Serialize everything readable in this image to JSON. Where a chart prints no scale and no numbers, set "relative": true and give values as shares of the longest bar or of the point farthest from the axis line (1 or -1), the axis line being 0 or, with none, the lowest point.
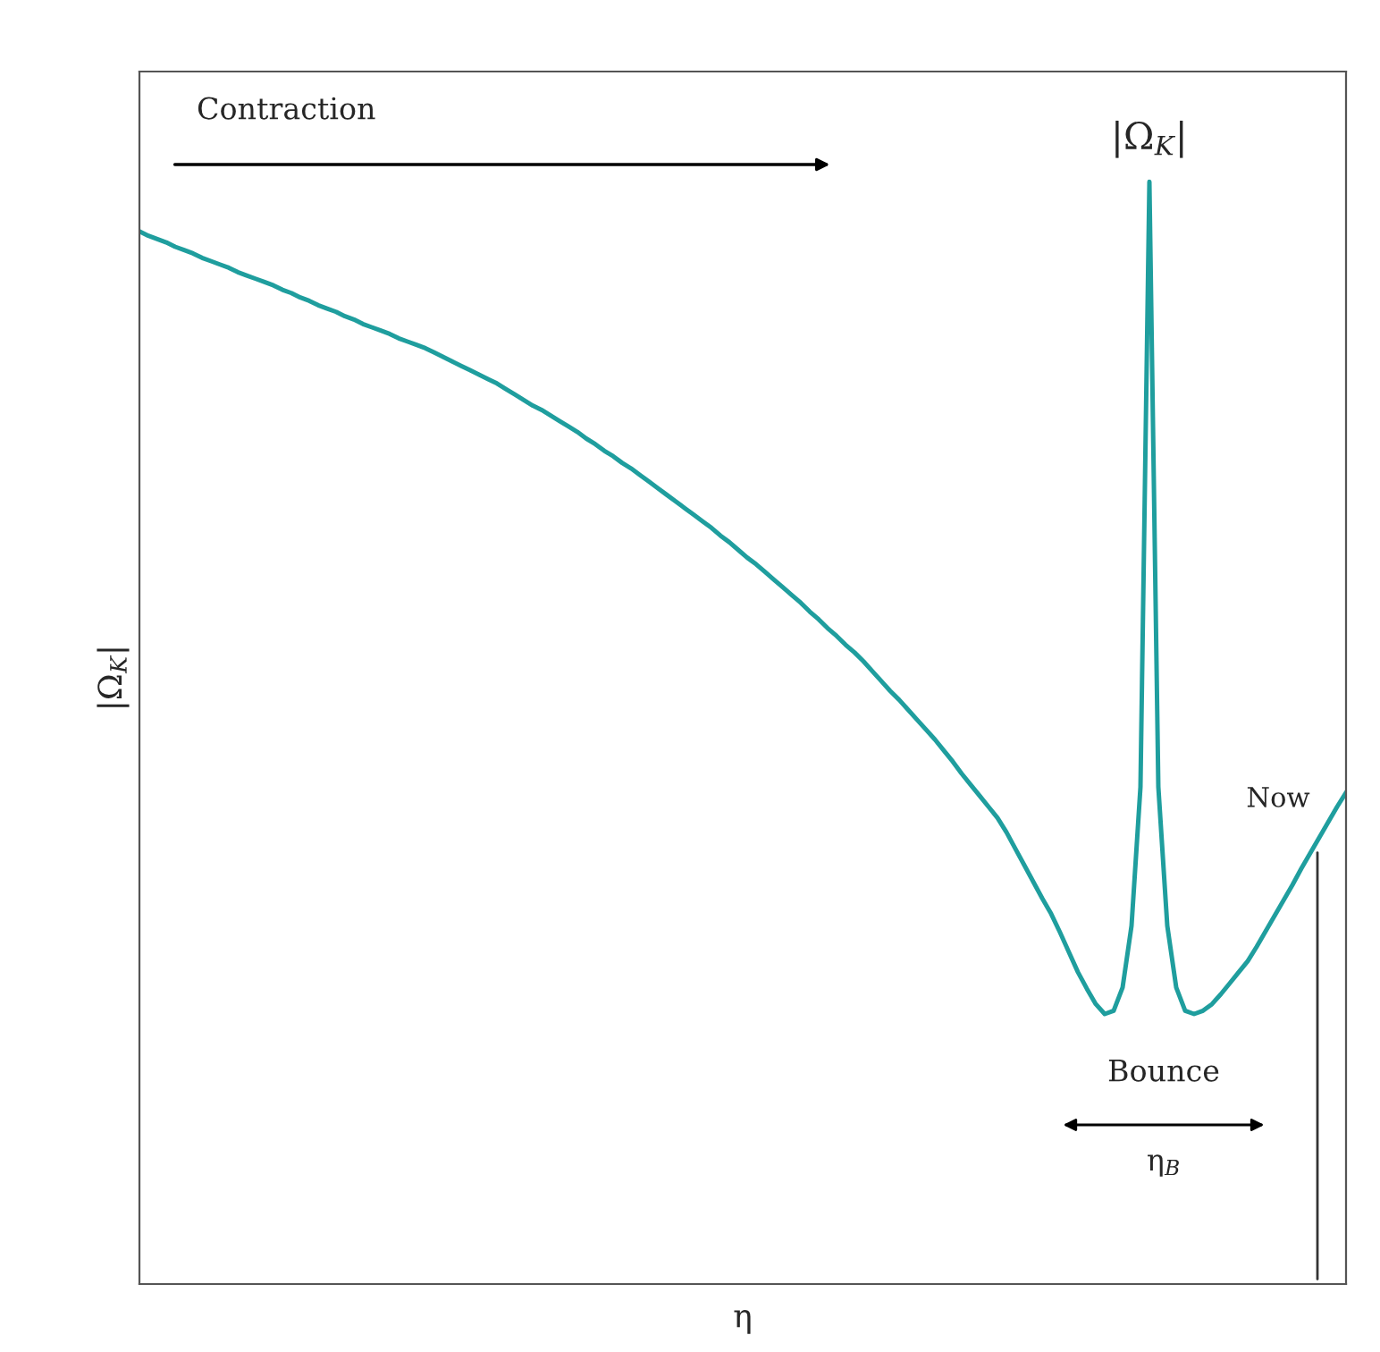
{
  "chart_data": {
    "type": "line",
    "relative": true,
    "xlabel": "η",
    "ylabel": "|Ω$_{K}$|",
    "categories": [
      null,
      null,
      null,
      null,
      null,
      null,
      null,
      null,
      null,
      null,
      null,
      null,
      null,
      null,
      null,
      null,
      null,
      null,
      null,
      null,
      null,
      null,
      null,
      null,
      null,
      null,
      null,
      null,
      null,
      null,
      null,
      null,
      null,
      null,
      null,
      null,
      null,
      null,
      null,
      null,
      null,
      null,
      null,
      null,
      null,
      null,
      null,
      null,
      null,
      null,
      null,
      null,
      null,
      null,
      null,
      null,
      null,
      null,
      null,
      null,
      null,
      null,
      null,
      null,
      null,
      null,
      null,
      null,
      null,
      null,
      null,
      null,
      null,
      null,
      null,
      null,
      null,
      null,
      null,
      null,
      null,
      null,
      null,
      null,
      null,
      null,
      null,
      null,
      null,
      null,
      null,
      null,
      null,
      null,
      null,
      null,
      null,
      null,
      null,
      null,
      null,
      null,
      null,
      null,
      null,
      null,
      null,
      null,
      null,
      null,
      null,
      null,
      null,
      null,
      null,
      null,
      null,
      null,
      null,
      null,
      null,
      null,
      null,
      null,
      null,
      null,
      null,
      null,
      null,
      null,
      null,
      null,
      null,
      null,
      null,
      null
    ],
    "series": [
      {
        "color": "#1f9e9e",
        "values": [
          0.955,
          0.951,
          0.948,
          0.945,
          0.941,
          0.938,
          0.935,
          0.931,
          0.928,
          0.925,
          0.922,
          0.918,
          0.915,
          0.912,
          0.909,
          0.906,
          0.902,
          0.899,
          0.895,
          0.892,
          0.888,
          0.885,
          0.882,
          0.878,
          0.875,
          0.871,
          0.868,
          0.865,
          0.862,
          0.858,
          0.855,
          0.852,
          0.849,
          0.845,
          0.841,
          0.837,
          0.833,
          0.829,
          0.825,
          0.821,
          0.817,
          0.812,
          0.807,
          0.802,
          0.797,
          0.793,
          0.788,
          0.783,
          0.778,
          0.773,
          0.767,
          0.762,
          0.756,
          0.751,
          0.745,
          0.74,
          0.734,
          0.728,
          0.722,
          0.716,
          0.71,
          0.704,
          0.698,
          0.692,
          0.686,
          0.679,
          0.673,
          0.666,
          0.659,
          0.653,
          0.646,
          0.639,
          0.632,
          0.625,
          0.618,
          0.61,
          0.603,
          0.595,
          0.588,
          0.58,
          0.573,
          0.565,
          0.556,
          0.547,
          0.538,
          0.53,
          0.521,
          0.512,
          0.503,
          0.494,
          0.484,
          0.474,
          0.463,
          0.453,
          0.443,
          0.433,
          0.423,
          0.41,
          0.395,
          0.38,
          0.365,
          0.35,
          0.336,
          0.319,
          0.301,
          0.283,
          0.268,
          0.254,
          0.245,
          0.248,
          0.269,
          0.325,
          0.451,
          1,
          0.451,
          0.325,
          0.269,
          0.248,
          0.245,
          0.248,
          0.254,
          0.263,
          0.273,
          0.283,
          0.293,
          0.306,
          0.32,
          0.334,
          0.348,
          0.362,
          0.377,
          0.391,
          0.405,
          0.419,
          0.433,
          0.446
        ]
      }
    ],
    "annotations": [
      "Contraction",
      "|Ω$_{K}$|",
      "Now",
      "Bounce",
      "η$_{B}$"
    ]
  }
}
